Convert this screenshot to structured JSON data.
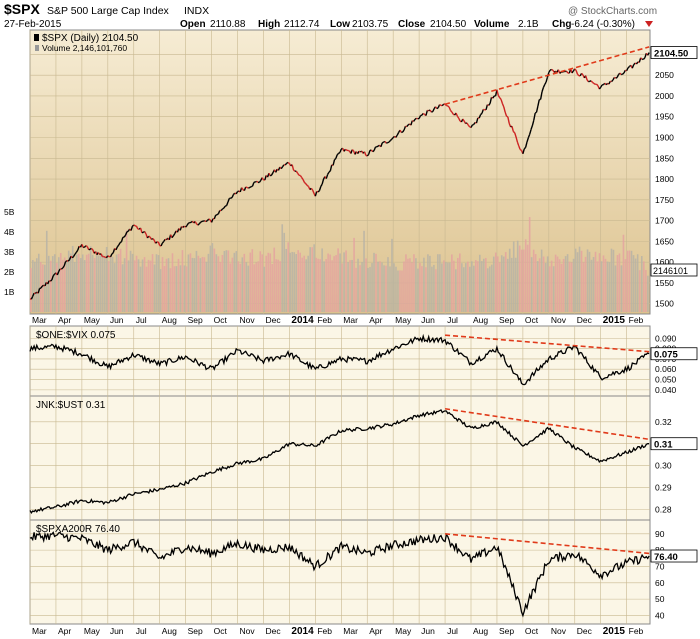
{
  "header": {
    "symbol": "$SPX",
    "name": "S&P 500 Large Cap Index",
    "exchange": "INDX",
    "date": "27-Feb-2015",
    "watermark": "@ StockCharts.com",
    "open_label": "Open",
    "open": "2110.88",
    "high_label": "High",
    "high": "2112.74",
    "low_label": "Low",
    "low": "2103.75",
    "close_label": "Close",
    "close": "2104.50",
    "volume_label": "Volume",
    "volume": "2.1B",
    "chg_label": "Chg",
    "chg": "-6.24 (-0.30%)"
  },
  "colors": {
    "up": "#000000",
    "down": "#cc2222",
    "trend": "#e03a1a",
    "panel_bg_top": "#f6ecd4",
    "panel_bg_bottom": "#dcc28e",
    "sub_bg": "#fbf6e6"
  },
  "x_axis_labels": [
    "Mar",
    "Apr",
    "May",
    "Jun",
    "Jul",
    "Aug",
    "Sep",
    "Oct",
    "Nov",
    "Dec",
    "2014",
    "Feb",
    "Mar",
    "Apr",
    "May",
    "Jun",
    "Jul",
    "Aug",
    "Sep",
    "Oct",
    "Nov",
    "Dec",
    "2015",
    "Feb"
  ],
  "chart_data": [
    {
      "type": "line",
      "legend": "$SPX (Daily) 2104.50",
      "volume_legend": "Volume 2,146,101,760",
      "y_ticks": [
        1500,
        1550,
        1600,
        1650,
        1700,
        1750,
        1800,
        1850,
        1900,
        1950,
        2000,
        2050,
        2100
      ],
      "ylim": [
        1480,
        2125
      ],
      "last_value_label": "2104.50",
      "volume_ticks": [
        "1B",
        "2B",
        "3B",
        "4B",
        "5B"
      ],
      "volume_last_label": "2146101",
      "x": [
        "2013-03",
        "2013-04",
        "2013-05",
        "2013-06",
        "2013-07",
        "2013-08",
        "2013-09",
        "2013-10",
        "2013-11",
        "2013-12",
        "2014-01",
        "2014-02",
        "2014-03",
        "2014-04",
        "2014-05",
        "2014-06",
        "2014-07",
        "2014-08",
        "2014-09",
        "2014-10",
        "2014-11",
        "2014-12",
        "2015-01",
        "2015-02",
        "2015-02-27"
      ],
      "values": [
        1510,
        1570,
        1640,
        1610,
        1690,
        1640,
        1690,
        1700,
        1770,
        1800,
        1840,
        1760,
        1870,
        1860,
        1900,
        1950,
        1980,
        1920,
        2010,
        1860,
        2060,
        2060,
        2020,
        2060,
        2104.5
      ],
      "volume_values": [
        2.4,
        2.7,
        3.0,
        2.9,
        2.6,
        2.5,
        2.7,
        3.0,
        2.8,
        2.7,
        3.1,
        3.0,
        2.7,
        2.6,
        2.5,
        2.5,
        2.6,
        2.4,
        2.6,
        3.4,
        2.6,
        2.9,
        2.7,
        2.8,
        2.1
      ],
      "trendline": {
        "from": [
          "2014-07",
          1980
        ],
        "to": [
          "2015-02-27",
          2118
        ]
      }
    },
    {
      "type": "line",
      "legend": "$ONE:$VIX 0.075",
      "y_ticks": [
        "0.040",
        "0.050",
        "0.060",
        "0.070",
        "0.080",
        "0.090"
      ],
      "ylim": [
        0.036,
        0.098
      ],
      "last_value_label": "0.075",
      "x": [
        "2013-03",
        "2013-04",
        "2013-05",
        "2013-06",
        "2013-07",
        "2013-08",
        "2013-09",
        "2013-10",
        "2013-11",
        "2013-12",
        "2014-01",
        "2014-02",
        "2014-03",
        "2014-04",
        "2014-05",
        "2014-06",
        "2014-07",
        "2014-08",
        "2014-09",
        "2014-10",
        "2014-11",
        "2014-12",
        "2015-01",
        "2015-02",
        "2015-02-27"
      ],
      "values": [
        0.08,
        0.082,
        0.075,
        0.062,
        0.074,
        0.065,
        0.072,
        0.06,
        0.078,
        0.068,
        0.075,
        0.06,
        0.07,
        0.068,
        0.08,
        0.09,
        0.088,
        0.066,
        0.08,
        0.045,
        0.07,
        0.082,
        0.052,
        0.06,
        0.075
      ],
      "trendline": {
        "from": [
          "2014-07",
          0.093
        ],
        "to": [
          "2015-02-27",
          0.077
        ]
      }
    },
    {
      "type": "line",
      "legend": "JNK:$UST 0.31",
      "y_ticks": [
        "0.28",
        "0.29",
        "0.30",
        "0.31",
        "0.32"
      ],
      "ylim": [
        0.276,
        0.33
      ],
      "last_value_label": "0.31",
      "x": [
        "2013-03",
        "2013-04",
        "2013-05",
        "2013-06",
        "2013-07",
        "2013-08",
        "2013-09",
        "2013-10",
        "2013-11",
        "2013-12",
        "2014-01",
        "2014-02",
        "2014-03",
        "2014-04",
        "2014-05",
        "2014-06",
        "2014-07",
        "2014-08",
        "2014-09",
        "2014-10",
        "2014-11",
        "2014-12",
        "2015-01",
        "2015-02",
        "2015-02-27"
      ],
      "values": [
        0.279,
        0.281,
        0.284,
        0.283,
        0.287,
        0.289,
        0.292,
        0.297,
        0.301,
        0.303,
        0.31,
        0.309,
        0.316,
        0.317,
        0.319,
        0.323,
        0.325,
        0.317,
        0.32,
        0.309,
        0.317,
        0.308,
        0.302,
        0.306,
        0.31
      ],
      "trendline": {
        "from": [
          "2014-07",
          0.326
        ],
        "to": [
          "2015-02-27",
          0.312
        ]
      }
    },
    {
      "type": "line",
      "legend": "$SPXA200R 76.40",
      "y_ticks": [
        "40",
        "50",
        "60",
        "70",
        "80",
        "90"
      ],
      "ylim": [
        36,
        96
      ],
      "last_value_label": "76.40",
      "x": [
        "2013-03",
        "2013-04",
        "2013-05",
        "2013-06",
        "2013-07",
        "2013-08",
        "2013-09",
        "2013-10",
        "2013-11",
        "2013-12",
        "2014-01",
        "2014-02",
        "2014-03",
        "2014-04",
        "2014-05",
        "2014-06",
        "2014-07",
        "2014-08",
        "2014-09",
        "2014-10",
        "2014-11",
        "2014-12",
        "2015-01",
        "2015-02",
        "2015-02-27"
      ],
      "values": [
        88,
        89,
        87,
        80,
        85,
        75,
        82,
        78,
        84,
        80,
        82,
        70,
        82,
        78,
        83,
        86,
        88,
        74,
        82,
        42,
        74,
        78,
        65,
        72,
        76.4
      ],
      "trendline": {
        "from": [
          "2014-07",
          90
        ],
        "to": [
          "2015-02-27",
          78
        ]
      }
    }
  ]
}
